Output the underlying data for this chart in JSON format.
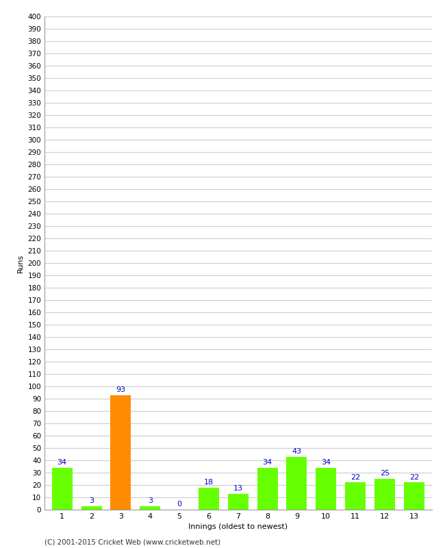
{
  "categories": [
    1,
    2,
    3,
    4,
    5,
    6,
    7,
    8,
    9,
    10,
    11,
    12,
    13
  ],
  "values": [
    34,
    3,
    93,
    3,
    0,
    18,
    13,
    34,
    43,
    34,
    22,
    25,
    22
  ],
  "bar_colors": [
    "#66ff00",
    "#66ff00",
    "#ff8c00",
    "#66ff00",
    "#66ff00",
    "#66ff00",
    "#66ff00",
    "#66ff00",
    "#66ff00",
    "#66ff00",
    "#66ff00",
    "#66ff00",
    "#66ff00"
  ],
  "xlabel": "Innings (oldest to newest)",
  "ylabel": "Runs",
  "ylim": [
    0,
    400
  ],
  "label_color": "#0000cc",
  "background_color": "#ffffff",
  "grid_color": "#cccccc",
  "footer": "(C) 2001-2015 Cricket Web (www.cricketweb.net)"
}
